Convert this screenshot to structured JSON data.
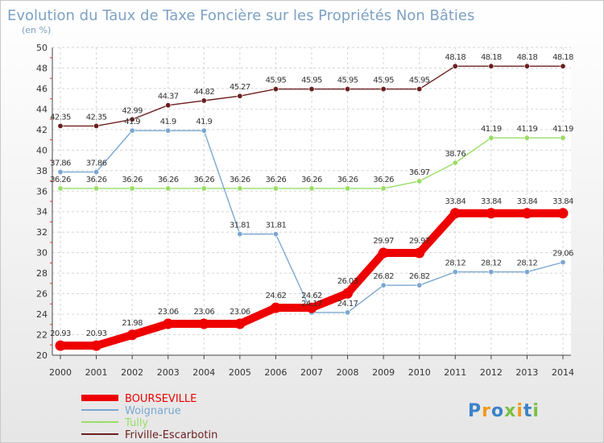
{
  "chart_data": {
    "type": "line",
    "title": "Evolution du Taux de Taxe Foncière sur les Propriétés Non Bâties",
    "subtitle": "(en %)",
    "x": [
      "2000",
      "2001",
      "2002",
      "2003",
      "2004",
      "2005",
      "2006",
      "2007",
      "2008",
      "2009",
      "2010",
      "2011",
      "2012",
      "2013",
      "2014"
    ],
    "ylim": [
      20,
      50
    ],
    "yticks": [
      20,
      22,
      24,
      26,
      28,
      30,
      32,
      34,
      36,
      38,
      40,
      42,
      44,
      46,
      48,
      50
    ],
    "grid": true,
    "legend_position": "bottom-left",
    "series": [
      {
        "name": "Friville-Escarbotin",
        "color": "#6b1f1f",
        "values": [
          42.35,
          42.35,
          42.99,
          44.37,
          44.82,
          45.27,
          45.95,
          45.95,
          45.95,
          45.95,
          45.95,
          48.18,
          48.18,
          48.18,
          48.18
        ],
        "labels": [
          "42.35",
          "42.35",
          "42.99",
          "44.37",
          "44.82",
          "45.27",
          "45.95",
          "45.95",
          "45.95",
          "45.95",
          "45.95",
          "48.18",
          "48.18",
          "48.18",
          "48.18"
        ]
      },
      {
        "name": "Tully",
        "color": "#99dd66",
        "values": [
          36.26,
          36.26,
          36.26,
          36.26,
          36.26,
          36.26,
          36.26,
          36.26,
          36.26,
          36.26,
          36.97,
          38.76,
          41.19,
          41.19,
          41.19
        ],
        "labels": [
          "36.26",
          "36.26",
          "36.26",
          "36.26",
          "36.26",
          "36.26",
          "36.26",
          "36.26",
          "36.26",
          "36.26",
          "36.97",
          "38.76",
          "41.19",
          "41.19",
          "41.19"
        ]
      },
      {
        "name": "Woignarue",
        "color": "#7aa7d1",
        "values": [
          37.86,
          37.86,
          41.9,
          41.9,
          41.9,
          31.81,
          31.81,
          24.17,
          24.17,
          26.82,
          26.82,
          28.12,
          28.12,
          28.12,
          29.06
        ],
        "labels": [
          "37.86",
          "37.86",
          "41.9",
          "41.9",
          "41.9",
          "31.81",
          "31.81",
          "24.17",
          "24.17",
          "26.82",
          "26.82",
          "28.12",
          "28.12",
          "28.12",
          "29.06"
        ]
      },
      {
        "name": "BOURSEVILLE",
        "color": "#ee0000",
        "values": [
          20.93,
          20.93,
          21.98,
          23.06,
          23.06,
          23.06,
          24.62,
          24.62,
          26.03,
          29.97,
          29.97,
          33.84,
          33.84,
          33.84,
          33.84
        ],
        "labels": [
          "20.93",
          "20.93",
          "21.98",
          "23.06",
          "23.06",
          "23.06",
          "24.62",
          "24.62",
          "26.03",
          "29.97",
          "29.97",
          "33.84",
          "33.84",
          "33.84",
          "33.84"
        ]
      }
    ],
    "legend": [
      {
        "name": "BOURSEVILLE",
        "color": "#ee0000"
      },
      {
        "name": "Woignarue",
        "color": "#7aa7d1"
      },
      {
        "name": "Tully",
        "color": "#99dd66"
      },
      {
        "name": "Friville-Escarbotin",
        "color": "#6b1f1f"
      }
    ]
  },
  "logo": {
    "text": "Proxiti",
    "letters": [
      {
        "ch": "P",
        "color": "#3b83c8"
      },
      {
        "ch": "r",
        "color": "#f29a1d"
      },
      {
        "ch": "o",
        "color": "#3b83c8"
      },
      {
        "ch": "x",
        "color": "#7bc043"
      },
      {
        "ch": "i",
        "color": "#f29a1d"
      },
      {
        "ch": "t",
        "color": "#3b83c8"
      },
      {
        "ch": "i",
        "color": "#7bc043"
      }
    ]
  }
}
